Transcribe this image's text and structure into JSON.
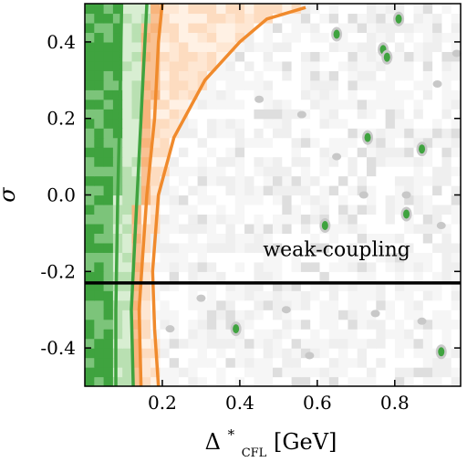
{
  "chart_data": {
    "type": "heatmap",
    "title": "",
    "xlabel_main": "Δ",
    "xlabel_sup": "*",
    "xlabel_sub": "CFL",
    "xlabel_unit": "[GeV]",
    "ylabel": "σ",
    "xlim": [
      0.0,
      0.97
    ],
    "ylim": [
      -0.5,
      0.5
    ],
    "xticks": [
      0.2,
      0.4,
      0.6,
      0.8
    ],
    "xtick_labels": [
      "0.2",
      "0.4",
      "0.6",
      "0.8"
    ],
    "yticks": [
      -0.4,
      -0.2,
      0.0,
      0.2,
      0.4
    ],
    "ytick_labels": [
      "-0.4",
      "-0.2",
      "0.0",
      "0.2",
      "0.4"
    ],
    "hline": {
      "y": -0.23,
      "color": "#000000"
    },
    "annotation": {
      "text": "weak-coupling",
      "x": 0.65,
      "y": -0.16
    },
    "colors": {
      "green_dark": "#3fa33f",
      "green_mid": "#7cc47a",
      "green_light": "#b9e0b2",
      "orange_dark": "#f08a2c",
      "orange_mid": "#f8b47c",
      "orange_light": "#fddcc0",
      "gray_light": "#efefef",
      "gray_mid": "#dedede",
      "gray_dark": "#c8c8c8"
    },
    "green_contours": [
      {
        "name": "",
        "points": [
          [
            0.08,
            -0.5
          ],
          [
            0.08,
            -0.3
          ],
          [
            0.085,
            0
          ],
          [
            0.09,
            0.2
          ],
          [
            0.095,
            0.5
          ]
        ]
      },
      {
        "name": "",
        "points": [
          [
            0.125,
            -0.5
          ],
          [
            0.12,
            -0.3
          ],
          [
            0.13,
            -0.1
          ],
          [
            0.14,
            0.1
          ],
          [
            0.15,
            0.3
          ],
          [
            0.16,
            0.5
          ]
        ]
      }
    ],
    "orange_contours": [
      {
        "name": "",
        "points": [
          [
            0.145,
            -0.5
          ],
          [
            0.14,
            -0.3
          ],
          [
            0.15,
            -0.15
          ],
          [
            0.16,
            0
          ],
          [
            0.18,
            0.2
          ],
          [
            0.19,
            0.4
          ],
          [
            0.2,
            0.5
          ]
        ]
      },
      {
        "name": "",
        "points": [
          [
            0.19,
            -0.5
          ],
          [
            0.18,
            -0.35
          ],
          [
            0.175,
            -0.2
          ],
          [
            0.19,
            0
          ],
          [
            0.23,
            0.15
          ],
          [
            0.31,
            0.3
          ],
          [
            0.4,
            0.4
          ],
          [
            0.47,
            0.46
          ],
          [
            0.57,
            0.49
          ]
        ]
      }
    ],
    "green_spots": [
      [
        0.65,
        0.42
      ],
      [
        0.81,
        0.46
      ],
      [
        0.77,
        0.38
      ],
      [
        0.78,
        0.36
      ],
      [
        0.73,
        0.15
      ],
      [
        0.87,
        0.12
      ],
      [
        0.62,
        -0.08
      ],
      [
        0.83,
        -0.05
      ],
      [
        0.39,
        -0.35
      ],
      [
        0.92,
        -0.41
      ]
    ],
    "gray_spots": [
      [
        0.96,
        0.37
      ],
      [
        0.91,
        0.29
      ],
      [
        0.45,
        0.25
      ],
      [
        0.56,
        0.21
      ],
      [
        0.65,
        0.1
      ],
      [
        0.72,
        0.0
      ],
      [
        0.83,
        0.0
      ],
      [
        0.92,
        -0.08
      ],
      [
        0.52,
        -0.3
      ],
      [
        0.75,
        -0.31
      ],
      [
        0.87,
        -0.33
      ],
      [
        0.58,
        -0.42
      ],
      [
        0.22,
        -0.35
      ],
      [
        0.3,
        -0.27
      ]
    ]
  }
}
